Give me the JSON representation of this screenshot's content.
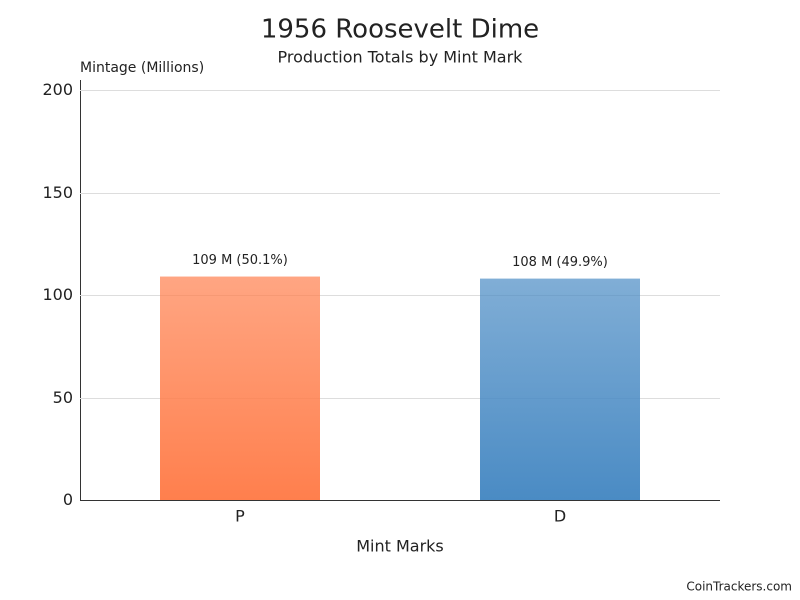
{
  "chart_data": {
    "type": "bar",
    "title": "1956 Roosevelt Dime",
    "subtitle": "Production Totals by Mint Mark",
    "y_label": "Mintage (Millions)",
    "x_label": "Mint Marks",
    "categories": [
      "P",
      "D"
    ],
    "values": [
      109,
      108
    ],
    "value_labels": [
      "109 M (50.1%)",
      "108 M (49.9%)"
    ],
    "colors": [
      "#ff7f4d",
      "#4a8bc4"
    ],
    "ylim": [
      0,
      200
    ],
    "yticks": [
      0,
      50,
      100,
      150,
      200
    ],
    "grid": true,
    "source": "CoinTrackers.com"
  }
}
